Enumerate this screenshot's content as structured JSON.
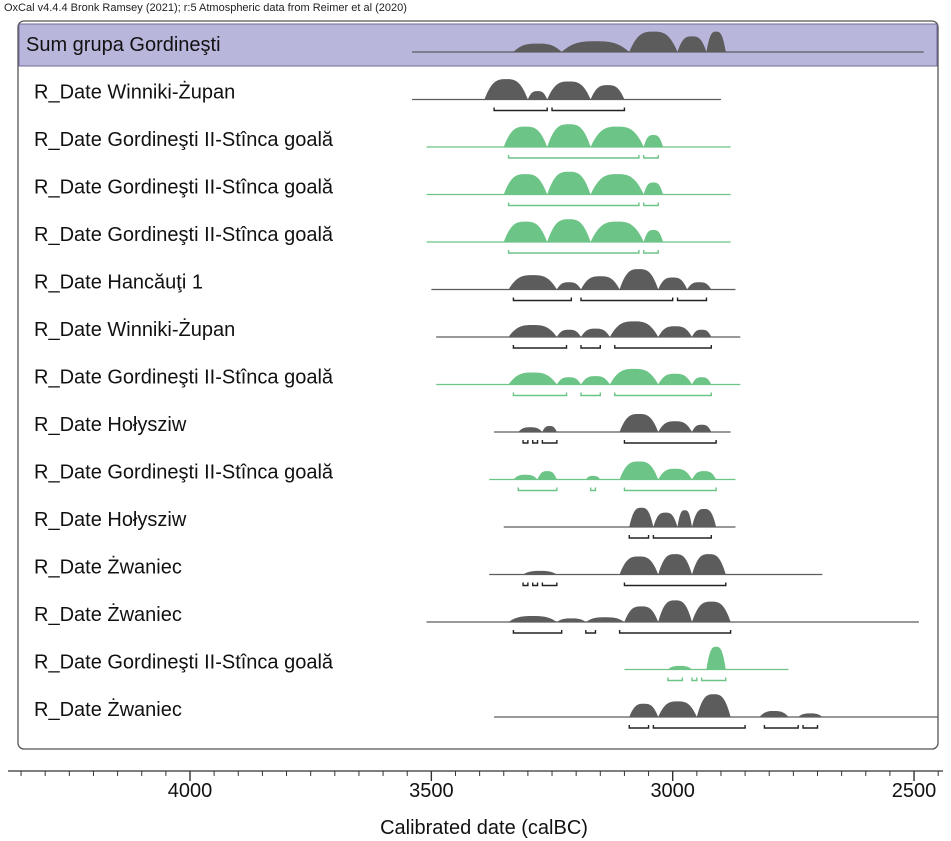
{
  "header": "OxCal v4.4.4 Bronk Ramsey (2021); r:5 Atmospheric data from Reimer et al (2020)",
  "colors": {
    "sum_band": "#b9b6db",
    "sum_border": "#6f6b9a",
    "gray_fill": "#5c5c5c",
    "green_fill": "#6cc487",
    "frame": "#555555"
  },
  "chart_data": {
    "type": "oxcal-multiplot",
    "xlabel": "Calibrated date (calBC)",
    "xlim": [
      4350,
      2480
    ],
    "x_ticks": [
      4000,
      3500,
      3000,
      2500
    ],
    "x_tick_labels": [
      "4000",
      "3500",
      "3000",
      "2500"
    ],
    "rows": [
      {
        "label": "Sum grupa Gordineşti",
        "kind": "sum",
        "color": "gray",
        "range": [
          3540,
          2480
        ],
        "peaks": [
          [
            3330,
            3230,
            0.35
          ],
          [
            3230,
            3090,
            0.45
          ],
          [
            3090,
            2990,
            0.85
          ],
          [
            2990,
            2930,
            0.65
          ],
          [
            2930,
            2890,
            0.85
          ]
        ],
        "brackets": []
      },
      {
        "label": "R_Date Winniki-Żupan",
        "kind": "date",
        "color": "gray",
        "range": [
          3540,
          2900
        ],
        "peaks": [
          [
            3390,
            3300,
            0.85
          ],
          [
            3300,
            3260,
            0.35
          ],
          [
            3260,
            3170,
            0.75
          ],
          [
            3170,
            3100,
            0.6
          ]
        ],
        "brackets": [
          [
            3370,
            3260
          ],
          [
            3250,
            3100
          ]
        ]
      },
      {
        "label": "R_Date Gordineşti II-Stînca goală",
        "kind": "date",
        "color": "green",
        "range": [
          3510,
          2880
        ],
        "peaks": [
          [
            3350,
            3260,
            0.85
          ],
          [
            3260,
            3170,
            0.95
          ],
          [
            3170,
            3060,
            0.85
          ],
          [
            3060,
            3020,
            0.5
          ]
        ],
        "brackets": [
          [
            3340,
            3070
          ],
          [
            3060,
            3030
          ]
        ]
      },
      {
        "label": "R_Date Gordineşti II-Stînca goală",
        "kind": "date",
        "color": "green",
        "range": [
          3510,
          2880
        ],
        "peaks": [
          [
            3350,
            3260,
            0.85
          ],
          [
            3260,
            3170,
            0.95
          ],
          [
            3170,
            3060,
            0.85
          ],
          [
            3060,
            3020,
            0.5
          ]
        ],
        "brackets": [
          [
            3340,
            3070
          ],
          [
            3060,
            3030
          ]
        ]
      },
      {
        "label": "R_Date Gordineşti II-Stînca goală",
        "kind": "date",
        "color": "green",
        "range": [
          3510,
          2880
        ],
        "peaks": [
          [
            3350,
            3260,
            0.85
          ],
          [
            3260,
            3170,
            0.95
          ],
          [
            3170,
            3060,
            0.85
          ],
          [
            3060,
            3020,
            0.5
          ]
        ],
        "brackets": [
          [
            3340,
            3070
          ],
          [
            3060,
            3030
          ]
        ]
      },
      {
        "label": "R_Date Hancăuţi 1",
        "kind": "date",
        "color": "gray",
        "range": [
          3500,
          2870
        ],
        "peaks": [
          [
            3340,
            3240,
            0.6
          ],
          [
            3240,
            3190,
            0.3
          ],
          [
            3190,
            3110,
            0.55
          ],
          [
            3110,
            3030,
            0.85
          ],
          [
            3030,
            2970,
            0.5
          ],
          [
            2970,
            2920,
            0.3
          ]
        ],
        "brackets": [
          [
            3330,
            3210
          ],
          [
            3190,
            3000
          ],
          [
            2990,
            2930
          ]
        ]
      },
      {
        "label": "R_Date Winniki-Żupan",
        "kind": "date",
        "color": "gray",
        "range": [
          3490,
          2860
        ],
        "peaks": [
          [
            3340,
            3240,
            0.5
          ],
          [
            3240,
            3190,
            0.3
          ],
          [
            3190,
            3130,
            0.35
          ],
          [
            3130,
            3030,
            0.65
          ],
          [
            3030,
            2960,
            0.45
          ],
          [
            2960,
            2920,
            0.3
          ]
        ],
        "brackets": [
          [
            3330,
            3220
          ],
          [
            3190,
            3150
          ],
          [
            3120,
            2920
          ]
        ]
      },
      {
        "label": "R_Date Gordineşti II-Stînca goală",
        "kind": "date",
        "color": "green",
        "range": [
          3490,
          2860
        ],
        "peaks": [
          [
            3340,
            3240,
            0.5
          ],
          [
            3240,
            3190,
            0.3
          ],
          [
            3190,
            3130,
            0.35
          ],
          [
            3130,
            3030,
            0.65
          ],
          [
            3030,
            2960,
            0.45
          ],
          [
            2960,
            2920,
            0.3
          ]
        ],
        "brackets": [
          [
            3330,
            3220
          ],
          [
            3190,
            3150
          ],
          [
            3120,
            2920
          ]
        ]
      },
      {
        "label": "R_Date Hołysziw",
        "kind": "date",
        "color": "gray",
        "range": [
          3370,
          2880
        ],
        "peaks": [
          [
            3320,
            3270,
            0.2
          ],
          [
            3270,
            3240,
            0.25
          ],
          [
            3110,
            3030,
            0.75
          ],
          [
            3030,
            2960,
            0.45
          ],
          [
            2960,
            2920,
            0.3
          ]
        ],
        "brackets": [
          [
            3310,
            3300
          ],
          [
            3290,
            3280
          ],
          [
            3270,
            3240
          ],
          [
            3100,
            2910
          ]
        ]
      },
      {
        "label": "R_Date Gordineşti II-Stînca goală",
        "kind": "date",
        "color": "green",
        "range": [
          3380,
          2870
        ],
        "peaks": [
          [
            3330,
            3280,
            0.2
          ],
          [
            3280,
            3240,
            0.35
          ],
          [
            3180,
            3150,
            0.15
          ],
          [
            3110,
            3030,
            0.75
          ],
          [
            3030,
            2960,
            0.45
          ],
          [
            2960,
            2910,
            0.35
          ]
        ],
        "brackets": [
          [
            3320,
            3240
          ],
          [
            3170,
            3160
          ],
          [
            3100,
            2910
          ]
        ]
      },
      {
        "label": "R_Date Hołysziw",
        "kind": "date",
        "color": "gray",
        "range": [
          3350,
          2870
        ],
        "peaks": [
          [
            3090,
            3040,
            0.8
          ],
          [
            3040,
            2990,
            0.6
          ],
          [
            2990,
            2960,
            0.7
          ],
          [
            2960,
            2910,
            0.75
          ]
        ],
        "brackets": [
          [
            3090,
            3050
          ],
          [
            3040,
            2920
          ]
        ]
      },
      {
        "label": "R_Date Żwaniec",
        "kind": "date",
        "color": "gray",
        "range": [
          3380,
          2690
        ],
        "peaks": [
          [
            3310,
            3240,
            0.15
          ],
          [
            3110,
            3030,
            0.75
          ],
          [
            3030,
            2960,
            0.85
          ],
          [
            2960,
            2890,
            0.85
          ]
        ],
        "brackets": [
          [
            3310,
            3300
          ],
          [
            3290,
            3280
          ],
          [
            3270,
            3240
          ],
          [
            3100,
            2890
          ]
        ]
      },
      {
        "label": "R_Date Żwaniec",
        "kind": "date",
        "color": "gray",
        "range": [
          3510,
          2490
        ],
        "peaks": [
          [
            3340,
            3240,
            0.25
          ],
          [
            3240,
            3180,
            0.15
          ],
          [
            3180,
            3100,
            0.2
          ],
          [
            3100,
            3030,
            0.65
          ],
          [
            3030,
            2960,
            0.9
          ],
          [
            2960,
            2880,
            0.85
          ]
        ],
        "brackets": [
          [
            3330,
            3230
          ],
          [
            3180,
            3160
          ],
          [
            3110,
            2880
          ]
        ]
      },
      {
        "label": "R_Date Gordineşti II-Stînca goală",
        "kind": "date",
        "color": "green",
        "range": [
          3100,
          2760
        ],
        "peaks": [
          [
            3010,
            2960,
            0.15
          ],
          [
            2930,
            2890,
            0.95
          ]
        ],
        "brackets": [
          [
            3010,
            2980
          ],
          [
            2960,
            2950
          ],
          [
            2940,
            2890
          ]
        ]
      },
      {
        "label": "R_Date Żwaniec",
        "kind": "date",
        "color": "gray",
        "range": [
          3370,
          2450
        ],
        "peaks": [
          [
            3090,
            3030,
            0.55
          ],
          [
            3030,
            2950,
            0.65
          ],
          [
            2950,
            2880,
            0.95
          ],
          [
            2820,
            2760,
            0.25
          ],
          [
            2740,
            2690,
            0.15
          ]
        ],
        "brackets": [
          [
            3090,
            3050
          ],
          [
            3040,
            2850
          ],
          [
            2810,
            2740
          ],
          [
            2730,
            2700
          ]
        ]
      }
    ]
  }
}
